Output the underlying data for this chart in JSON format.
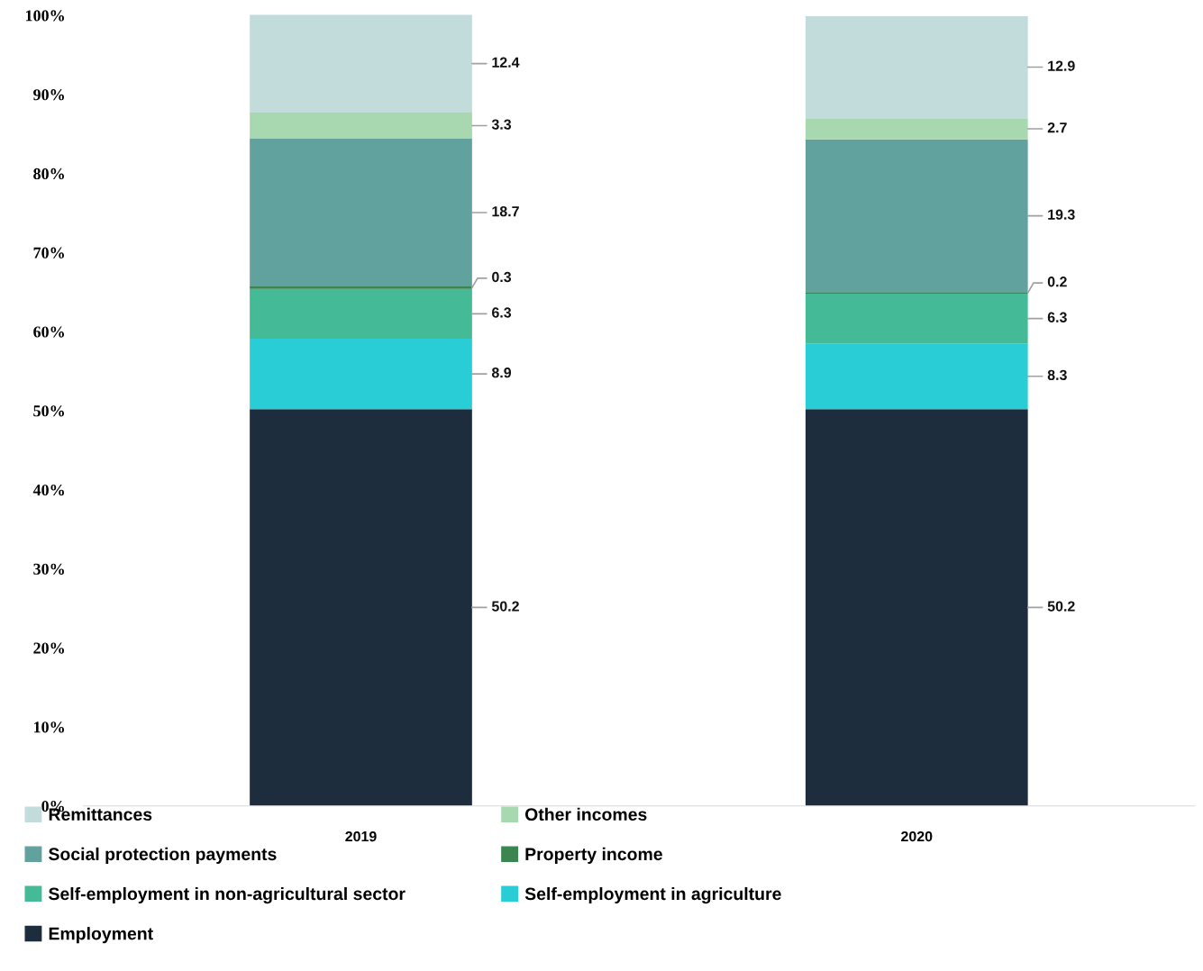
{
  "chart_data": {
    "type": "bar",
    "stacked": true,
    "categories": [
      "2019",
      "2020"
    ],
    "series": [
      {
        "name": "Employment",
        "color": "#1e2d3d",
        "values": [
          50.2,
          50.2
        ]
      },
      {
        "name": "Self-employment in agriculture",
        "color": "#29cdd6",
        "values": [
          8.9,
          8.3
        ]
      },
      {
        "name": "Self-employment in non-agricultural sector",
        "color": "#44bb96",
        "values": [
          6.3,
          6.3
        ]
      },
      {
        "name": "Property income",
        "color": "#3a8550",
        "values": [
          0.3,
          0.2
        ]
      },
      {
        "name": "Social protection payments",
        "color": "#62a29e",
        "values": [
          18.7,
          19.3
        ]
      },
      {
        "name": "Other incomes",
        "color": "#a8d8b0",
        "values": [
          3.3,
          2.7
        ]
      },
      {
        "name": "Remittances",
        "color": "#c2dcdc",
        "values": [
          12.4,
          12.9
        ]
      }
    ],
    "ylim": [
      0,
      100.1
    ],
    "yticks": [
      {
        "value": 0,
        "label": "0%"
      },
      {
        "value": 10,
        "label": "10%"
      },
      {
        "value": 20,
        "label": "20%"
      },
      {
        "value": 30,
        "label": "30%"
      },
      {
        "value": 40,
        "label": "40%"
      },
      {
        "value": 50,
        "label": "50%"
      },
      {
        "value": 60,
        "label": "60%"
      },
      {
        "value": 70,
        "label": "70%"
      },
      {
        "value": 80,
        "label": "80%"
      },
      {
        "value": 90,
        "label": "90%"
      },
      {
        "value": 100,
        "label": "100%"
      }
    ],
    "data_labels": true,
    "legend": "bottom",
    "grid": false
  }
}
